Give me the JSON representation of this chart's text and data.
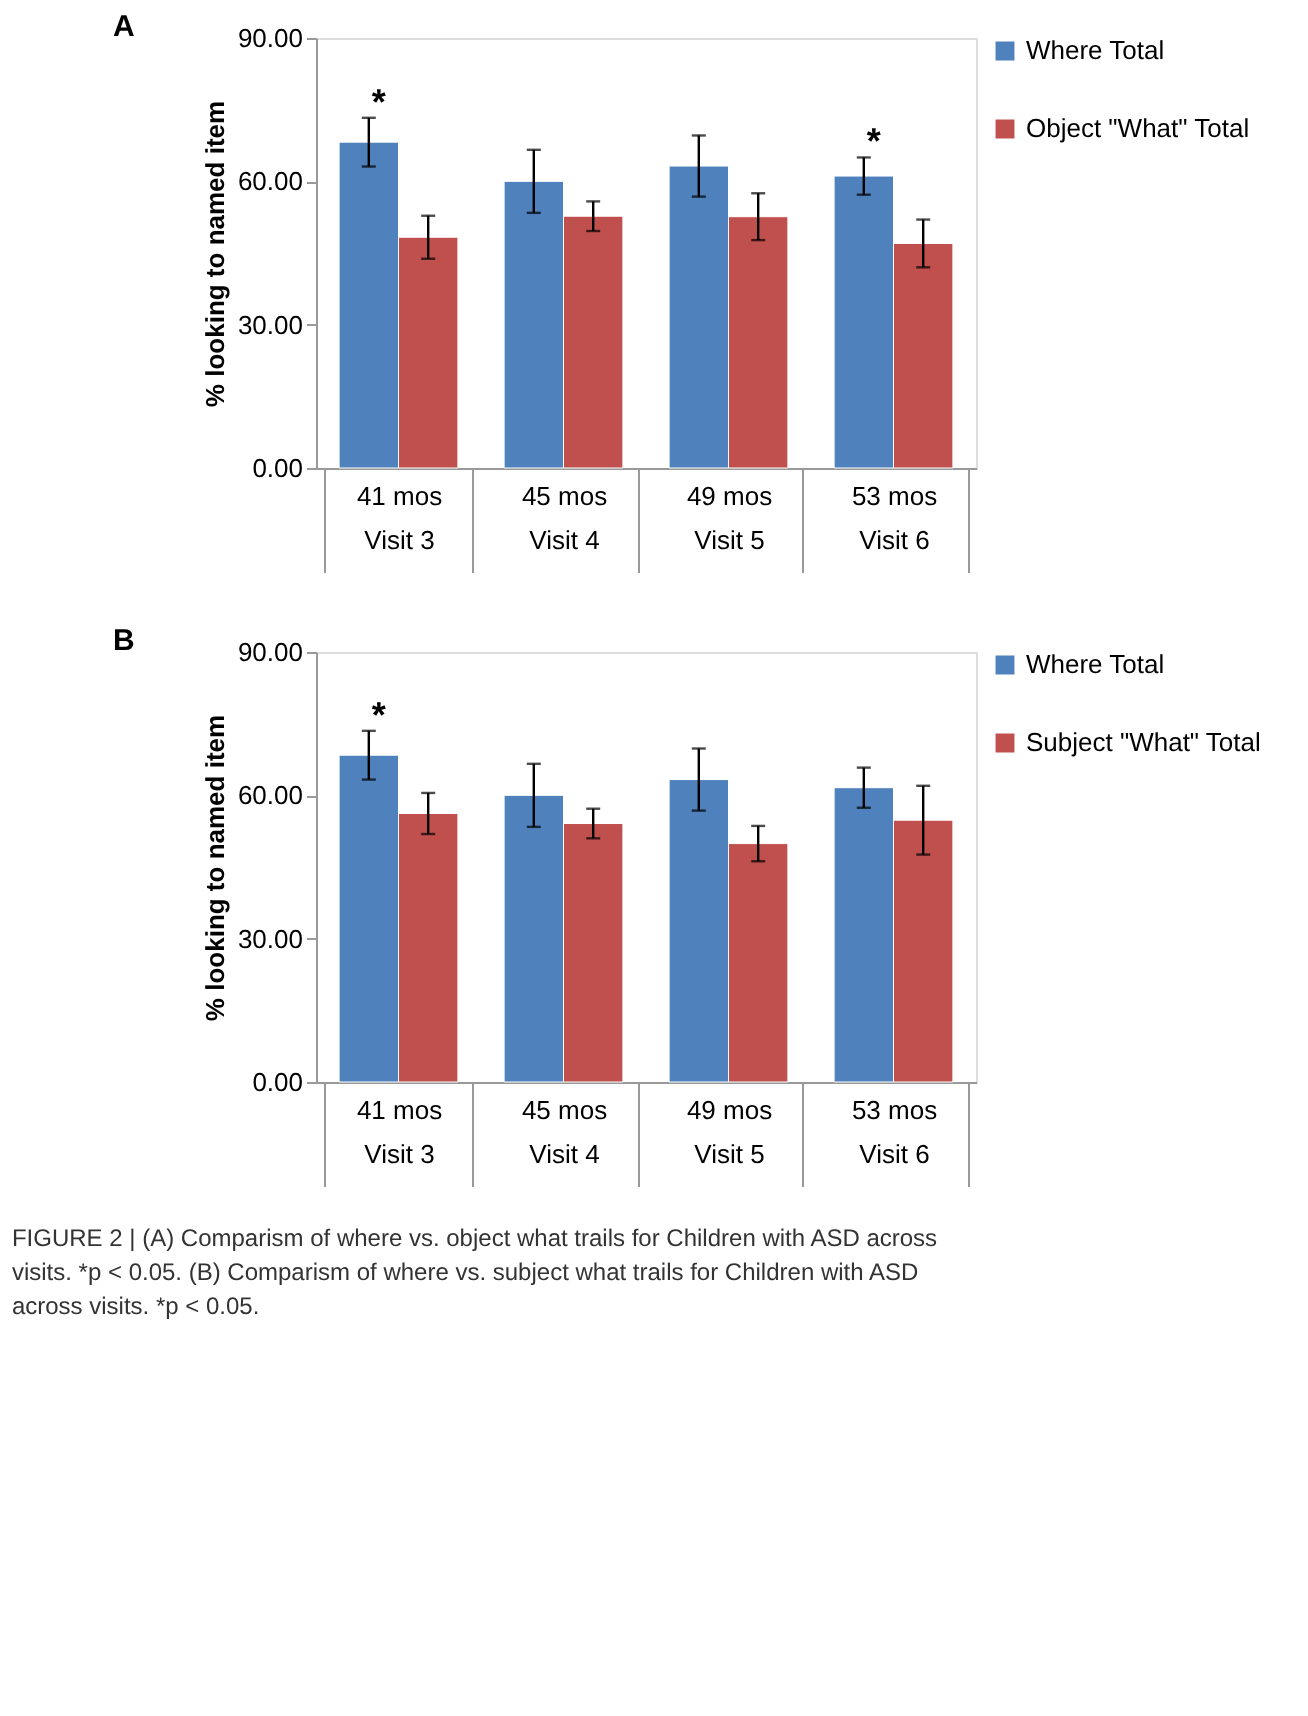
{
  "chart_data": [
    {
      "type": "bar",
      "title": "A",
      "ylabel": "% looking to named item",
      "categories": [
        "41 mos\nVisit 3",
        "45 mos\nVisit 4",
        "49 mos\nVisit 5",
        "53 mos\nVisit 6"
      ],
      "series": [
        {
          "name": "Where Total",
          "color": "#4f81bd",
          "values": [
            68.2,
            60.0,
            63.2,
            61.1
          ],
          "errors": [
            5.1,
            6.6,
            6.4,
            3.9
          ]
        },
        {
          "name": "Object \"What\" Total",
          "color": "#c0504d",
          "values": [
            48.3,
            52.7,
            52.6,
            47.0
          ],
          "errors": [
            4.5,
            3.1,
            4.9,
            5.0
          ]
        }
      ],
      "ylim": [
        0,
        90
      ],
      "yticks": [
        {
          "value": 0,
          "label": "0.00"
        },
        {
          "value": 30,
          "label": "30.00"
        },
        {
          "value": 60,
          "label": "60.00"
        },
        {
          "value": 90,
          "label": "90.00"
        }
      ],
      "annotations": [
        {
          "text": "*",
          "x": "41 mos\nVisit 3",
          "y": 68.2
        },
        {
          "text": "*",
          "x": "53 mos\nVisit 6",
          "y": 61.1
        }
      ],
      "grid": false,
      "legend": "right"
    },
    {
      "type": "bar",
      "title": "B",
      "ylabel": "% looking to named item",
      "categories": [
        "41 mos\nVisit 3",
        "45 mos\nVisit 4",
        "49 mos\nVisit 5",
        "53 mos\nVisit 6"
      ],
      "series": [
        {
          "name": "Where Total",
          "color": "#4f81bd",
          "values": [
            68.4,
            60.0,
            63.3,
            61.6
          ],
          "errors": [
            5.1,
            6.6,
            6.5,
            4.2
          ]
        },
        {
          "name": "Subject \"What\" Total",
          "color": "#c0504d",
          "values": [
            56.2,
            54.1,
            49.9,
            54.8
          ],
          "errors": [
            4.3,
            3.1,
            3.7,
            7.2
          ]
        }
      ],
      "ylim": [
        0,
        90
      ],
      "yticks": [
        {
          "value": 0,
          "label": "0.00"
        },
        {
          "value": 30,
          "label": "30.00"
        },
        {
          "value": 60,
          "label": "60.00"
        },
        {
          "value": 90,
          "label": "90.00"
        }
      ],
      "annotations": [
        {
          "text": "*",
          "x": "41 mos\nVisit 3",
          "y": 68.4
        },
        "FIGURE 2 | (A) Comparism of where vs. object what trails for Children with ASD across visits. *p < 0.05. (B) Comparism of where vs. subject what trails for Children with ASD across visits. *p < 0.05."
      ],
      "grid": false,
      "legend": "right"
    }
  ]
}
